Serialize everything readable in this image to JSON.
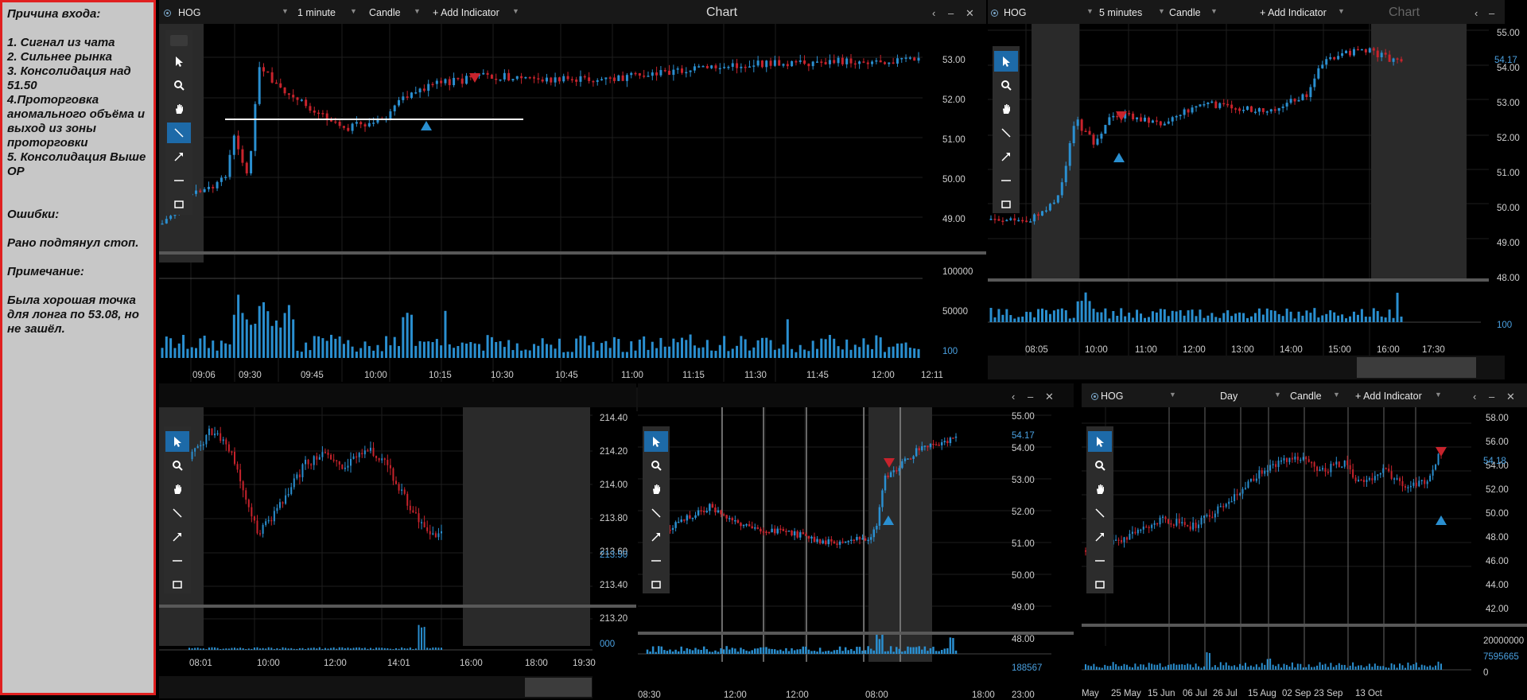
{
  "notes": {
    "entry_heading": "Причина входа:",
    "entry_items": [
      "1. Сигнал из чата",
      "2. Сильнее рынка",
      "3. Консолидация над 51.50",
      "4.Проторговка аномального объёма и выход из зоны проторговки",
      "5. Консолидация Выше ОР"
    ],
    "errors_heading": "Ошибки:",
    "errors_text": "Рано подтянул стоп.",
    "note_heading": "Примечание:",
    "note_text": "Была хорошая точка для лонга по 53.08, но не зашёл."
  },
  "colors": {
    "up": "#2a8fd0",
    "down": "#c8232c",
    "accent": "#1d6aa8",
    "panel_header": "#181818",
    "note_bg": "#c7c7c7",
    "note_border": "#e02020"
  },
  "icons": [
    "pointer-icon",
    "zoom-icon",
    "hand-icon",
    "line-icon",
    "arrow-icon",
    "horizontal-line-icon",
    "rectangle-icon"
  ],
  "panel1": {
    "symbol": "HOG",
    "interval": "1 minute",
    "chart_type": "Candle",
    "add_indicator": "+ Add Indicator",
    "title": "Chart",
    "price_axis": [
      "53.00",
      "52.00",
      "51.00",
      "50.00",
      "49.00"
    ],
    "volume_axis": [
      "100000",
      "50000",
      "100"
    ],
    "time_axis": [
      "09:06",
      "09:30",
      "09:45",
      "10:00",
      "10:15",
      "10:30",
      "10:45",
      "11:00",
      "11:15",
      "11:30",
      "11:45",
      "12:00",
      "12:11"
    ]
  },
  "panel2": {
    "symbol": "HOG",
    "interval": "5 minutes",
    "chart_type": "Candle",
    "add_indicator": "+ Add Indicator",
    "title": "Chart",
    "price_axis": [
      "55.00",
      "54.00",
      "53.00",
      "52.00",
      "51.00",
      "50.00",
      "49.00",
      "48.00"
    ],
    "price_label": "54.17",
    "volume_label": "100",
    "time_axis": [
      "08:05",
      "10:00",
      "11:00",
      "12:00",
      "13:00",
      "14:00",
      "15:00",
      "16:00",
      "17:30"
    ]
  },
  "panel3": {
    "price_axis": [
      "214.40",
      "214.20",
      "214.00",
      "213.80",
      "213.60",
      "213.40",
      "213.20"
    ],
    "price_label": "213.50",
    "volume_label": "000",
    "time_axis": [
      "08:01",
      "10:00",
      "12:00",
      "14:01",
      "16:00",
      "18:00",
      "19:30"
    ]
  },
  "panel4": {
    "price_axis": [
      "55.00",
      "54.00",
      "53.00",
      "52.00",
      "51.00",
      "50.00",
      "49.00",
      "48.00"
    ],
    "price_label": "54.17",
    "volume_label": "188567",
    "time_axis": [
      "08:30",
      "12:00",
      "12:00",
      "08:00",
      "18:00",
      "23:00"
    ]
  },
  "panel5": {
    "symbol": "HOG",
    "interval": "Day",
    "chart_type": "Candle",
    "add_indicator": "+ Add Indicator",
    "price_axis": [
      "58.00",
      "56.00",
      "54.00",
      "52.00",
      "50.00",
      "48.00",
      "46.00",
      "44.00",
      "42.00"
    ],
    "price_label": "54.18",
    "volume_axis": [
      "20000000",
      "7595665",
      "0"
    ],
    "time_axis": [
      "May",
      "25 May",
      "15 Jun",
      "06 Jul",
      "26 Jul",
      "15 Aug",
      "02 Sep",
      "23 Sep",
      "13 Oct"
    ]
  }
}
